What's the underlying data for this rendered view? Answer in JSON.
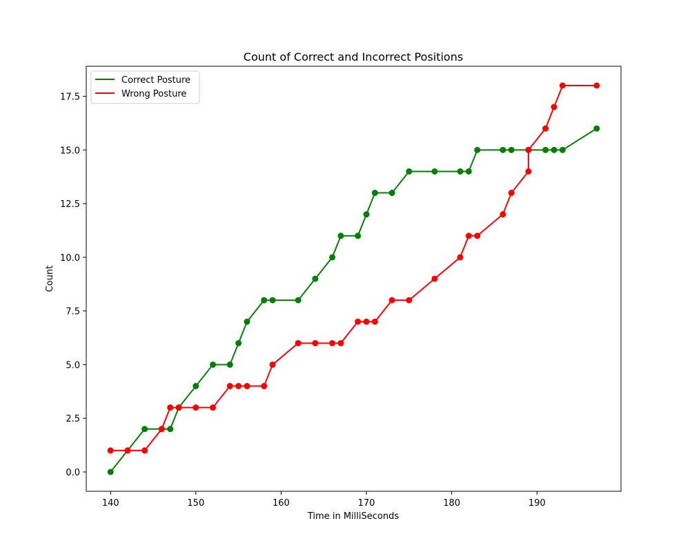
{
  "chart_data": {
    "type": "line",
    "title": "Count of Correct and Incorrect Positions",
    "xlabel": "Time in MilliSeconds",
    "ylabel": "Count",
    "xlim": [
      137.15,
      199.85
    ],
    "ylim": [
      -0.9,
      18.9
    ],
    "xticks": [
      140,
      150,
      160,
      170,
      180,
      190
    ],
    "yticks": [
      0.0,
      2.5,
      5.0,
      7.5,
      10.0,
      12.5,
      15.0,
      17.5
    ],
    "ytick_labels": [
      "0.0",
      "2.5",
      "5.0",
      "7.5",
      "10.0",
      "12.5",
      "15.0",
      "17.5"
    ],
    "grid": false,
    "legend_position": "upper-left",
    "series": [
      {
        "name": "Correct Posture",
        "color": "#008000",
        "marker": "circle",
        "points": [
          [
            140,
            0
          ],
          [
            142,
            1
          ],
          [
            144,
            2
          ],
          [
            146,
            2
          ],
          [
            147,
            2
          ],
          [
            148,
            3
          ],
          [
            150,
            4
          ],
          [
            152,
            5
          ],
          [
            154,
            5
          ],
          [
            155,
            6
          ],
          [
            156,
            7
          ],
          [
            158,
            8
          ],
          [
            159,
            8
          ],
          [
            162,
            8
          ],
          [
            164,
            9
          ],
          [
            166,
            10
          ],
          [
            167,
            11
          ],
          [
            169,
            11
          ],
          [
            170,
            12
          ],
          [
            171,
            13
          ],
          [
            173,
            13
          ],
          [
            175,
            14
          ],
          [
            178,
            14
          ],
          [
            181,
            14
          ],
          [
            182,
            14
          ],
          [
            183,
            15
          ],
          [
            186,
            15
          ],
          [
            187,
            15
          ],
          [
            189,
            15
          ],
          [
            191,
            15
          ],
          [
            192,
            15
          ],
          [
            193,
            15
          ],
          [
            197,
            16
          ]
        ]
      },
      {
        "name": "Wrong Posture",
        "color": "#ff0000",
        "marker": "circle",
        "points": [
          [
            140,
            1
          ],
          [
            142,
            1
          ],
          [
            144,
            1
          ],
          [
            146,
            2
          ],
          [
            147,
            3
          ],
          [
            148,
            3
          ],
          [
            150,
            3
          ],
          [
            152,
            3
          ],
          [
            154,
            4
          ],
          [
            155,
            4
          ],
          [
            156,
            4
          ],
          [
            158,
            4
          ],
          [
            159,
            5
          ],
          [
            162,
            6
          ],
          [
            164,
            6
          ],
          [
            166,
            6
          ],
          [
            167,
            6
          ],
          [
            169,
            7
          ],
          [
            170,
            7
          ],
          [
            171,
            7
          ],
          [
            173,
            8
          ],
          [
            175,
            8
          ],
          [
            178,
            9
          ],
          [
            181,
            10
          ],
          [
            182,
            11
          ],
          [
            183,
            11
          ],
          [
            186,
            12
          ],
          [
            187,
            13
          ],
          [
            189,
            14
          ],
          [
            189,
            15
          ],
          [
            191,
            16
          ],
          [
            192,
            17
          ],
          [
            193,
            18
          ],
          [
            197,
            18
          ]
        ]
      }
    ]
  }
}
